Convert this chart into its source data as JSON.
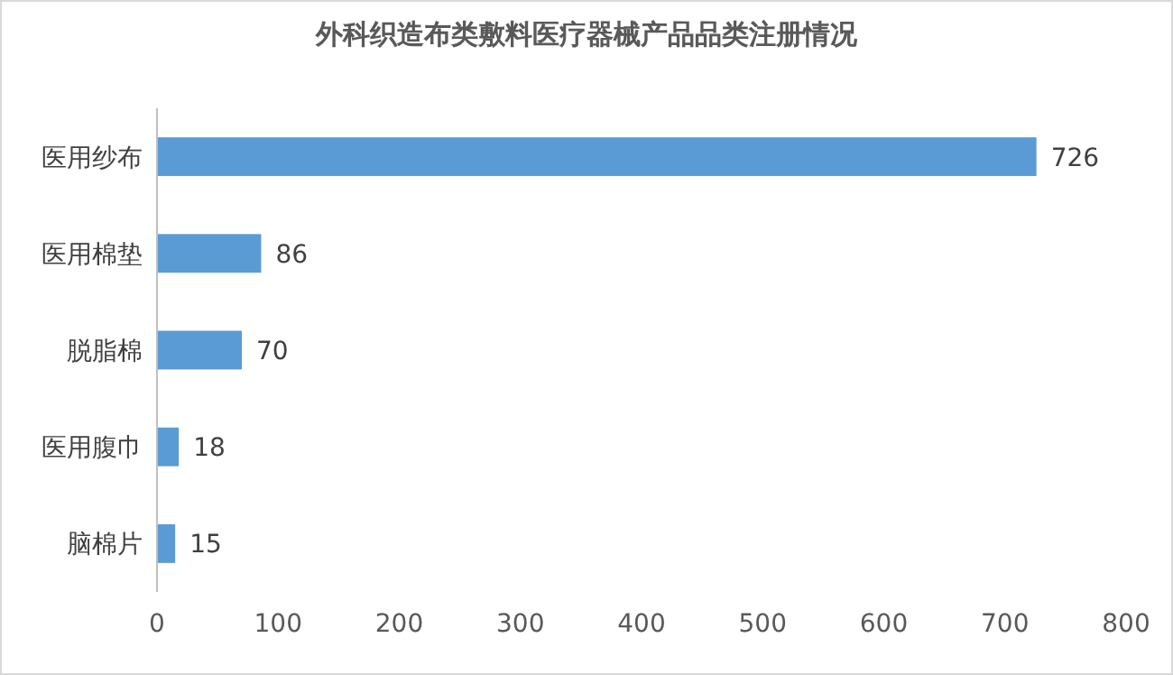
{
  "chart_data": {
    "type": "bar",
    "orientation": "horizontal",
    "title": "外科织造布类敷料医疗器械产品品类注册情况",
    "categories": [
      "医用纱布",
      "医用棉垫",
      "脱脂棉",
      "医用腹巾",
      "脑棉片"
    ],
    "values": [
      726,
      86,
      70,
      18,
      15
    ],
    "color": "#5b9bd5",
    "xlim": [
      0,
      800
    ],
    "xticks": [
      0,
      100,
      200,
      300,
      400,
      500,
      600,
      700,
      800
    ],
    "data_labels": true
  }
}
